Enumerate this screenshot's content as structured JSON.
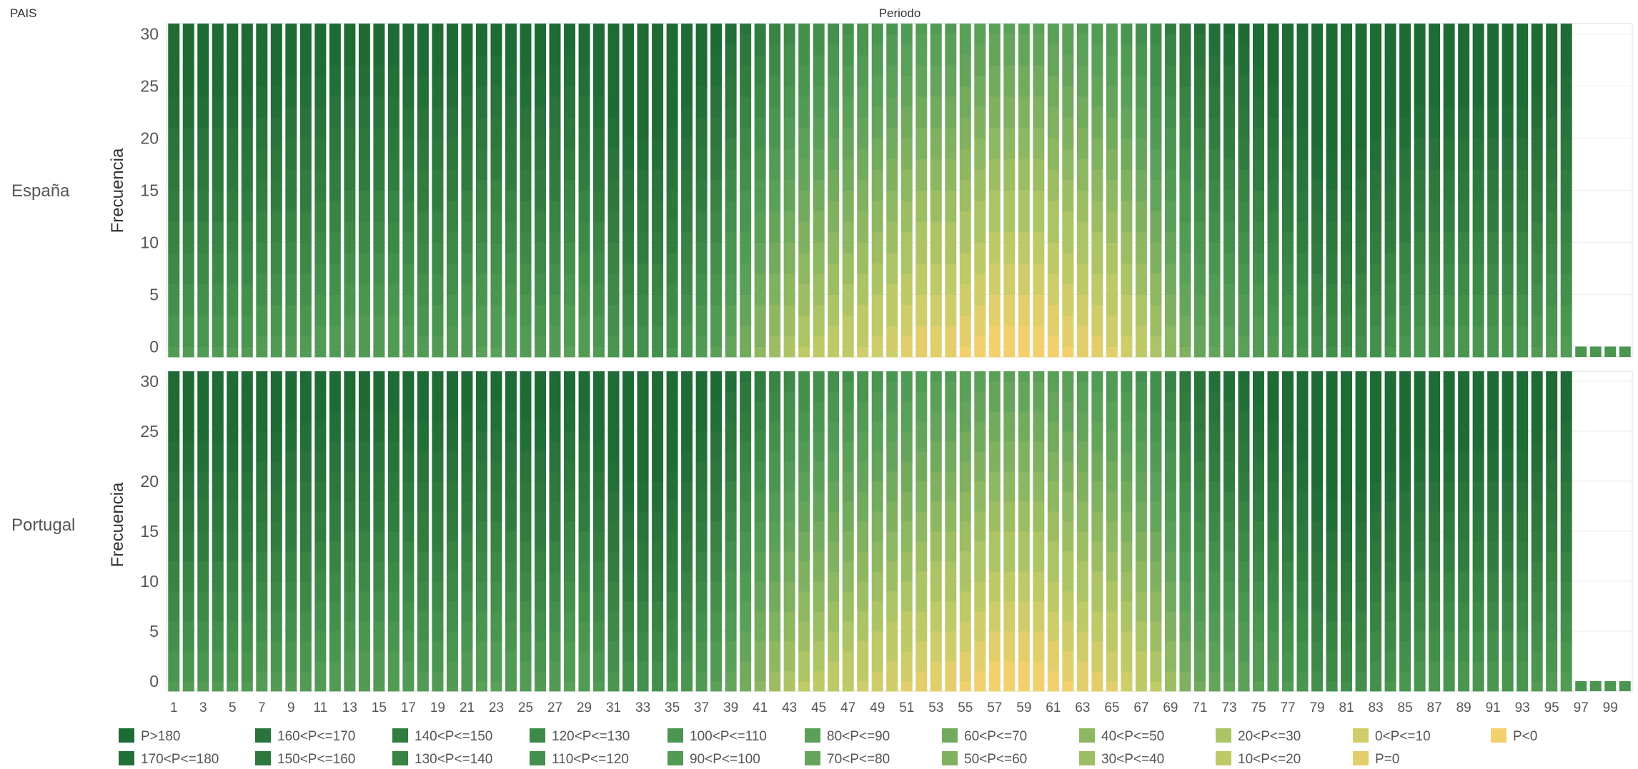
{
  "page": {
    "row_header": "PAIS",
    "column_header": "Periodo"
  },
  "colors": {
    "P>180": "#1f6b35",
    "170<P<=180": "#236f38",
    "160<P<=170": "#28743b",
    "150<P<=160": "#2c783d",
    "140<P<=150": "#317d40",
    "130<P<=140": "#378444",
    "120<P<=130": "#3d8a48",
    "110<P<=120": "#43904c",
    "100<P<=110": "#4a9550",
    "90<P<=100": "#529b54",
    "80<P<=90": "#5ba058",
    "70<P<=80": "#65a55b",
    "60<P<=70": "#72ab5e",
    "50<P<=60": "#80b160",
    "40<P<=50": "#8eb762",
    "30<P<=40": "#9dbd64",
    "20<P<=30": "#adc466",
    "10<P<=20": "#bec967",
    "0<P<=10": "#cfcd69",
    "P=0": "#e2cf6b",
    "P<0": "#f2d06e"
  },
  "chart_data": {
    "type": "bar",
    "stacked": true,
    "x_label": "Periodo",
    "y_label": "Frecuencia",
    "x_ticks": [
      "1",
      "3",
      "5",
      "7",
      "9",
      "11",
      "13",
      "15",
      "17",
      "19",
      "21",
      "23",
      "25",
      "27",
      "29",
      "31",
      "33",
      "35",
      "37",
      "39",
      "41",
      "43",
      "45",
      "47",
      "49",
      "51",
      "53",
      "55",
      "57",
      "59",
      "61",
      "63",
      "65",
      "67",
      "69",
      "71",
      "73",
      "75",
      "77",
      "79",
      "81",
      "83",
      "85",
      "87",
      "89",
      "91",
      "93",
      "95",
      "97",
      "99"
    ],
    "y_ticks": [
      "0",
      "5",
      "10",
      "15",
      "20",
      "25",
      "30"
    ],
    "ylim": [
      -1,
      31
    ],
    "periods": 100,
    "legend_position": "bottom",
    "legend": [
      "P>180",
      "160<P<=170",
      "140<P<=150",
      "120<P<=130",
      "100<P<=110",
      "80<P<=90",
      "60<P<=70",
      "40<P<=50",
      "20<P<=30",
      "0<P<=10",
      "P<0",
      "170<P<=180",
      "150<P<=160",
      "130<P<=140",
      "110<P<=120",
      "90<P<=100",
      "70<P<=80",
      "50<P<=60",
      "30<P<=40",
      "10<P<=20",
      "P=0"
    ],
    "panels": [
      {
        "name": "España",
        "bar_totals": [
          32,
          32,
          32,
          32,
          32,
          32,
          32,
          32,
          32,
          32,
          32,
          32,
          32,
          32,
          32,
          32,
          32,
          32,
          32,
          32,
          32,
          32,
          32,
          32,
          32,
          32,
          32,
          32,
          32,
          32,
          32,
          32,
          32,
          32,
          32,
          32,
          32,
          32,
          32,
          32,
          32,
          32,
          32,
          32,
          32,
          32,
          32,
          32,
          32,
          32,
          32,
          32,
          32,
          32,
          32,
          32,
          32,
          32,
          32,
          32,
          32,
          32,
          32,
          32,
          32,
          32,
          32,
          32,
          32,
          32,
          32,
          32,
          32,
          32,
          32,
          32,
          32,
          32,
          32,
          32,
          32,
          32,
          32,
          32,
          32,
          32,
          32,
          32,
          32,
          32,
          32,
          32,
          32,
          32,
          32,
          32,
          1,
          1,
          1,
          1
        ],
        "lower_share": [
          0.22,
          0.22,
          0.22,
          0.22,
          0.22,
          0.22,
          0.24,
          0.24,
          0.25,
          0.25,
          0.26,
          0.27,
          0.28,
          0.28,
          0.28,
          0.28,
          0.26,
          0.25,
          0.25,
          0.26,
          0.28,
          0.3,
          0.3,
          0.28,
          0.26,
          0.25,
          0.27,
          0.3,
          0.28,
          0.22,
          0.18,
          0.14,
          0.14,
          0.14,
          0.16,
          0.2,
          0.24,
          0.3,
          0.38,
          0.46,
          0.55,
          0.62,
          0.68,
          0.72,
          0.74,
          0.76,
          0.78,
          0.8,
          0.82,
          0.84,
          0.88,
          0.9,
          0.9,
          0.9,
          0.92,
          0.94,
          0.96,
          0.96,
          0.96,
          0.96,
          0.94,
          0.92,
          0.9,
          0.88,
          0.86,
          0.82,
          0.76,
          0.68,
          0.58,
          0.48,
          0.4,
          0.36,
          0.34,
          0.32,
          0.28,
          0.24,
          0.2,
          0.16,
          0.12,
          0.1,
          0.1,
          0.12,
          0.14,
          0.16,
          0.18,
          0.2,
          0.2,
          0.2,
          0.2,
          0.2,
          0.2,
          0.2,
          0.2,
          0.22,
          0.24,
          0.25,
          0.3,
          0.3,
          0.3,
          0.3
        ]
      },
      {
        "name": "Portugal",
        "bar_totals": [
          32,
          32,
          32,
          32,
          32,
          32,
          32,
          32,
          32,
          32,
          32,
          32,
          32,
          32,
          32,
          32,
          32,
          32,
          32,
          32,
          32,
          32,
          32,
          32,
          32,
          32,
          32,
          32,
          32,
          32,
          32,
          32,
          32,
          32,
          32,
          32,
          32,
          32,
          32,
          32,
          32,
          32,
          32,
          32,
          32,
          32,
          32,
          32,
          32,
          32,
          32,
          32,
          32,
          32,
          32,
          32,
          32,
          32,
          32,
          32,
          32,
          32,
          32,
          32,
          32,
          32,
          32,
          32,
          32,
          32,
          32,
          32,
          32,
          32,
          32,
          32,
          32,
          32,
          32,
          32,
          32,
          32,
          32,
          32,
          32,
          32,
          32,
          32,
          32,
          32,
          32,
          32,
          32,
          32,
          32,
          32,
          1,
          1,
          1,
          1
        ],
        "lower_share": [
          0.22,
          0.22,
          0.22,
          0.22,
          0.22,
          0.22,
          0.24,
          0.24,
          0.25,
          0.25,
          0.26,
          0.27,
          0.28,
          0.28,
          0.28,
          0.28,
          0.26,
          0.25,
          0.25,
          0.26,
          0.28,
          0.3,
          0.3,
          0.28,
          0.26,
          0.25,
          0.27,
          0.3,
          0.28,
          0.22,
          0.18,
          0.14,
          0.14,
          0.14,
          0.16,
          0.2,
          0.24,
          0.3,
          0.38,
          0.46,
          0.55,
          0.62,
          0.68,
          0.72,
          0.74,
          0.76,
          0.78,
          0.8,
          0.82,
          0.84,
          0.86,
          0.88,
          0.9,
          0.9,
          0.92,
          0.94,
          0.96,
          0.96,
          0.96,
          0.96,
          0.94,
          0.92,
          0.9,
          0.88,
          0.86,
          0.82,
          0.78,
          0.72,
          0.62,
          0.5,
          0.42,
          0.38,
          0.36,
          0.34,
          0.3,
          0.26,
          0.22,
          0.18,
          0.12,
          0.1,
          0.1,
          0.12,
          0.14,
          0.16,
          0.18,
          0.2,
          0.2,
          0.2,
          0.2,
          0.2,
          0.2,
          0.2,
          0.2,
          0.22,
          0.24,
          0.25,
          0.3,
          0.3,
          0.3,
          0.3
        ]
      }
    ]
  }
}
